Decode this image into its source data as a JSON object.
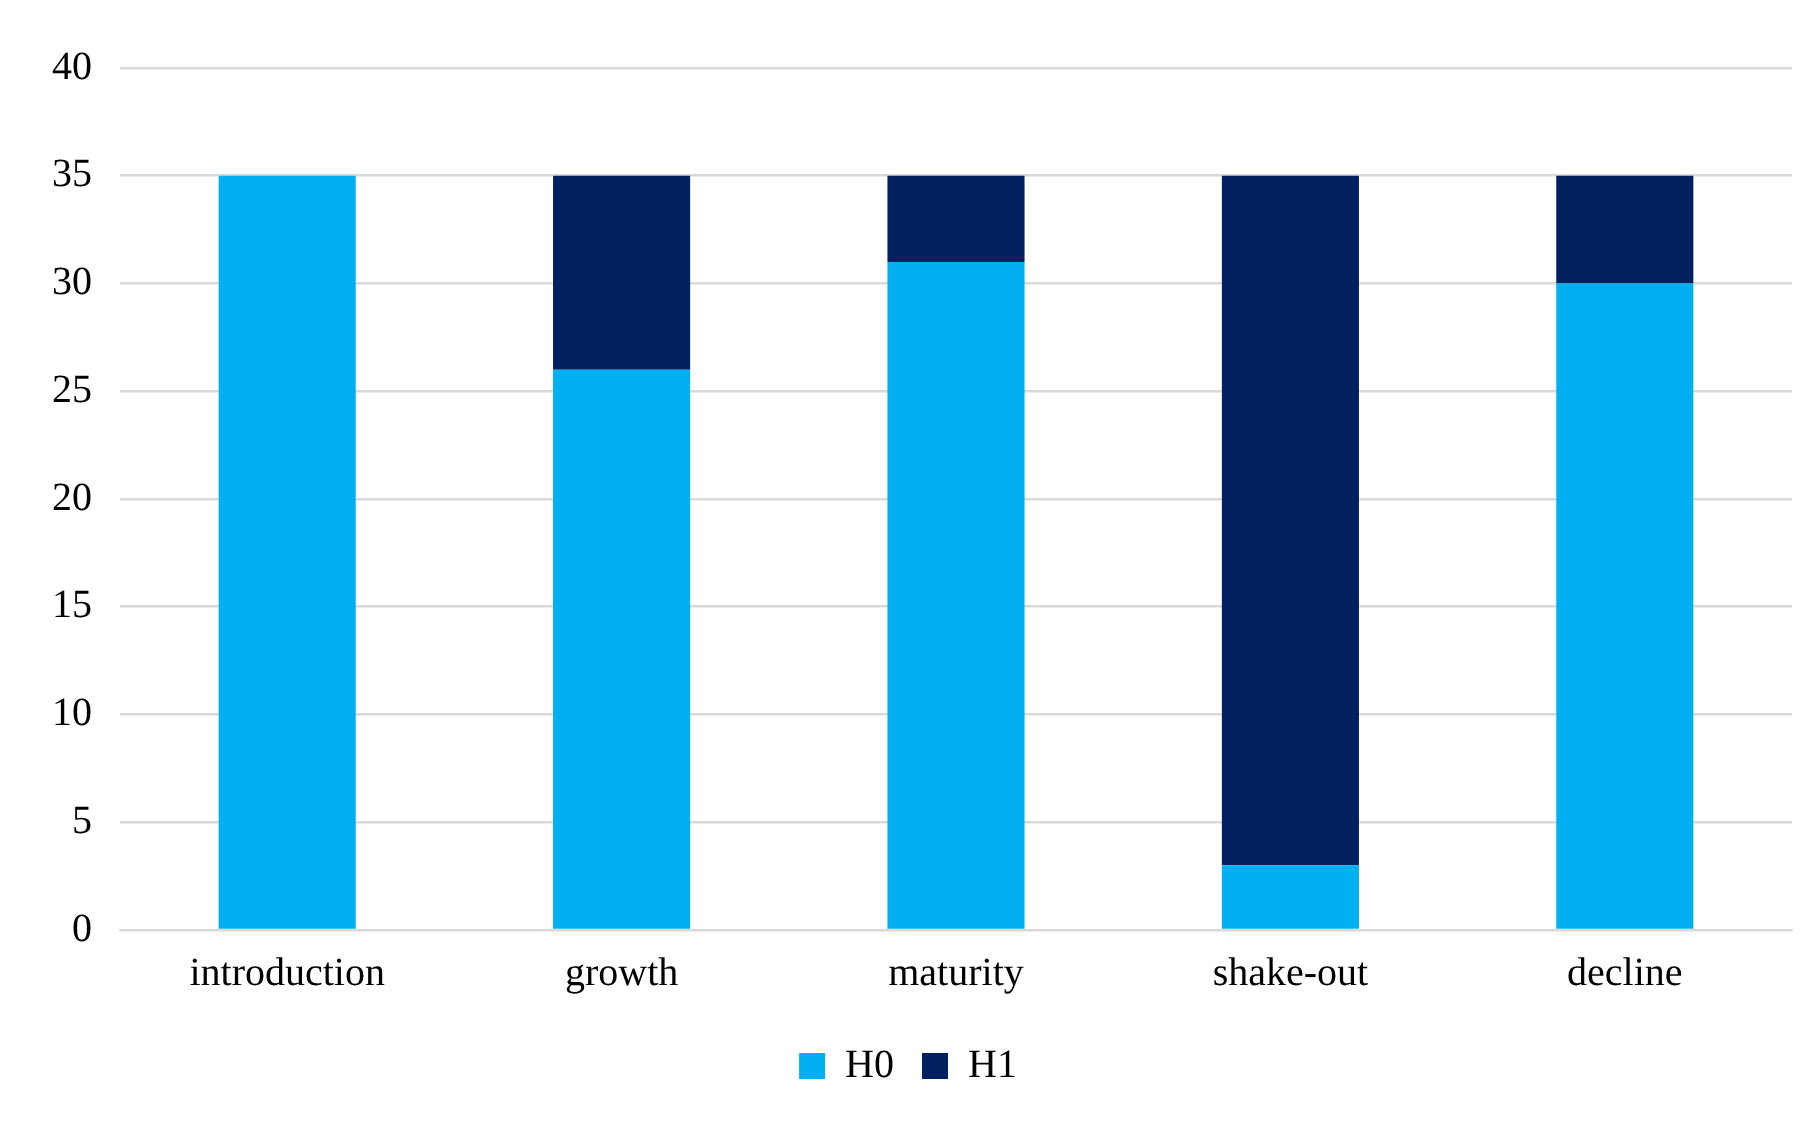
{
  "chart_data": {
    "type": "bar",
    "stacked": true,
    "categories": [
      "introduction",
      "growth",
      "maturity",
      "shake-out",
      "decline"
    ],
    "series": [
      {
        "name": "H0",
        "color": "#00b0f0",
        "values": [
          35,
          26,
          31,
          3,
          30
        ]
      },
      {
        "name": "H1",
        "color": "#002060",
        "values": [
          0,
          9,
          4,
          32,
          5
        ]
      }
    ],
    "ylim": [
      0,
      40
    ],
    "yticks": [
      0,
      5,
      10,
      15,
      20,
      25,
      30,
      35,
      40
    ],
    "grid": "y",
    "legend": "bottom"
  }
}
